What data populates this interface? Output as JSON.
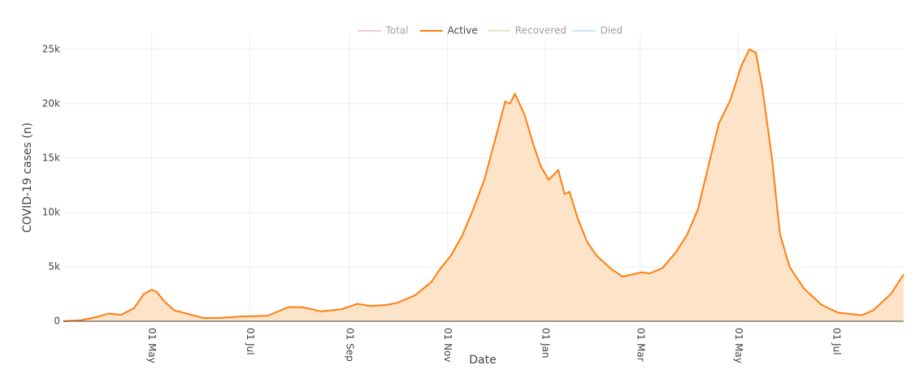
{
  "chart_data": {
    "type": "area",
    "x_label": "Date",
    "y_label": "COVID-19 cases (n)",
    "xlim": [
      6,
      529
    ],
    "xticks": [
      {
        "value": 61,
        "label": "01 May"
      },
      {
        "value": 122,
        "label": "01 Jul"
      },
      {
        "value": 184,
        "label": "01 Sep"
      },
      {
        "value": 245,
        "label": "01 Nov"
      },
      {
        "value": 306,
        "label": "01 Jan"
      },
      {
        "value": 365,
        "label": "01 Mar"
      },
      {
        "value": 426,
        "label": "01 May"
      },
      {
        "value": 487,
        "label": "01 Jul"
      }
    ],
    "ylim": [
      0,
      26400
    ],
    "yticks": [
      0,
      {
        "value": 5000,
        "label": "5k"
      },
      {
        "value": 10000,
        "label": "10k"
      },
      {
        "value": 15000,
        "label": "15k"
      },
      {
        "value": 20000,
        "label": "20k"
      },
      {
        "value": 25000,
        "label": "25k"
      }
    ],
    "grid": true,
    "legend": "top",
    "x": [
      6,
      17,
      27,
      34,
      42,
      50,
      56,
      61,
      64,
      69,
      75,
      83,
      93,
      103,
      118,
      133,
      146,
      154,
      161,
      166,
      179,
      189,
      197,
      207,
      214,
      225,
      235,
      240,
      247,
      254,
      260,
      268,
      274,
      281,
      284,
      287,
      293,
      298,
      303,
      308,
      314,
      318,
      321,
      326,
      332,
      338,
      347,
      354,
      366,
      371,
      379,
      387,
      394,
      401,
      407,
      414,
      421,
      428,
      433,
      437,
      441,
      447,
      452,
      458,
      467,
      478,
      488,
      503,
      510,
      521,
      529
    ],
    "series": [
      {
        "name": "Active",
        "color": "#ff7f0e",
        "fill": "#fde3c8",
        "values": [
          0,
          100,
          400,
          700,
          600,
          1200,
          2500,
          2900,
          2700,
          1800,
          1000,
          700,
          300,
          300,
          450,
          500,
          1300,
          1300,
          1100,
          900,
          1100,
          1600,
          1400,
          1500,
          1700,
          2400,
          3600,
          4700,
          6000,
          7800,
          9900,
          13000,
          16300,
          20200,
          20000,
          20900,
          19000,
          16500,
          14300,
          13000,
          13900,
          11700,
          11900,
          9500,
          7300,
          6000,
          4800,
          4100,
          4500,
          4400,
          4900,
          6300,
          7900,
          10300,
          14000,
          18200,
          20300,
          23500,
          25000,
          24700,
          21500,
          15000,
          8000,
          5000,
          3000,
          1500,
          800,
          550,
          1000,
          2500,
          4300
        ]
      }
    ],
    "hidden_series": [
      {
        "name": "Total",
        "color": "#e88fb0"
      },
      {
        "name": "Recovered",
        "color": "#b5dd8f"
      },
      {
        "name": "Died",
        "color": "#8fd3f2"
      }
    ]
  }
}
